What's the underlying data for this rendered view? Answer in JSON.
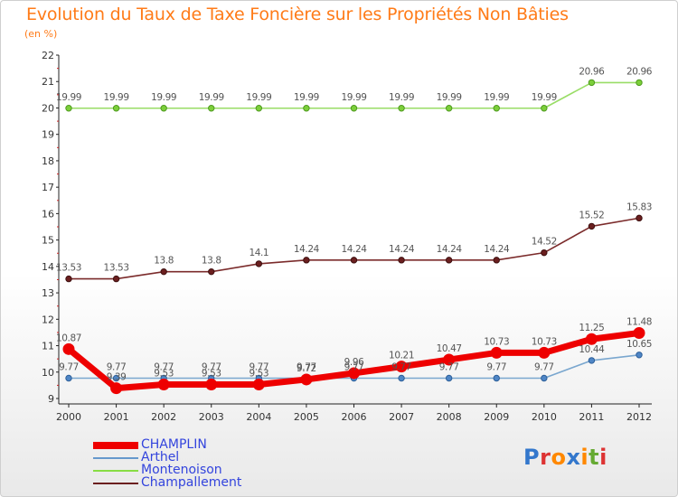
{
  "title": "Evolution du Taux de Taxe Foncière sur les Propriétés Non Bâties",
  "subtitle": "(en %)",
  "logo_text": "Proxiti",
  "chart_data": {
    "type": "line",
    "title": "Evolution du Taux de Taxe Foncière sur les Propriétés Non Bâties",
    "ylabel": "(en %)",
    "xlabel": "",
    "ylim": [
      9,
      22
    ],
    "grid": false,
    "legend_position": "bottom-left",
    "categories": [
      "2000",
      "2001",
      "2002",
      "2003",
      "2004",
      "2005",
      "2006",
      "2007",
      "2008",
      "2009",
      "2010",
      "2011",
      "2012"
    ],
    "yticks": [
      "9",
      "10",
      "11",
      "12",
      "13",
      "14",
      "15",
      "16",
      "17",
      "18",
      "19",
      "20",
      "21",
      "22"
    ],
    "series": [
      {
        "name": "CHAMPLIN",
        "color": "#ee0000",
        "values": [
          10.87,
          9.39,
          9.53,
          9.53,
          9.53,
          9.72,
          9.96,
          10.21,
          10.47,
          10.73,
          10.73,
          11.25,
          11.48
        ]
      },
      {
        "name": "Arthel",
        "color": "#6699cc",
        "values": [
          9.77,
          9.77,
          9.77,
          9.77,
          9.77,
          9.77,
          9.77,
          9.77,
          9.77,
          9.77,
          9.77,
          10.44,
          10.65
        ]
      },
      {
        "name": "Montenoison",
        "color": "#88dd44",
        "values": [
          19.99,
          19.99,
          19.99,
          19.99,
          19.99,
          19.99,
          19.99,
          19.99,
          19.99,
          19.99,
          19.99,
          20.96,
          20.96
        ]
      },
      {
        "name": "Champallement",
        "color": "#6b1f1f",
        "values": [
          13.53,
          13.53,
          13.8,
          13.8,
          14.1,
          14.24,
          14.24,
          14.24,
          14.24,
          14.24,
          14.52,
          15.52,
          15.83
        ]
      }
    ]
  }
}
